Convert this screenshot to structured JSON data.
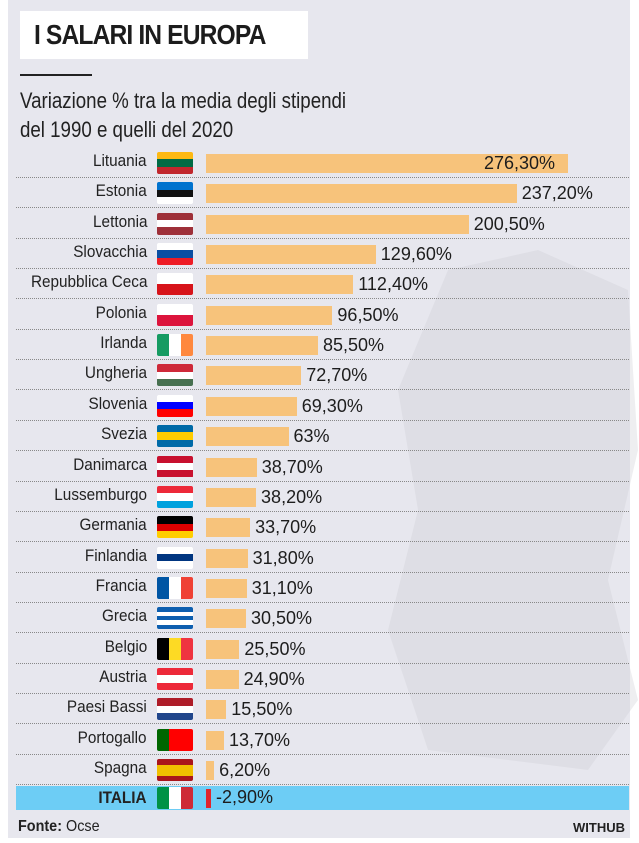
{
  "header": {
    "title": "I SALARI IN EUROPA",
    "subtitle_line1": "Variazione % tra la media degli stipendi",
    "subtitle_line2": "del 1990 e quelli del  2020"
  },
  "footer": {
    "source_label": "Fonte:",
    "source_value": "Ocse",
    "brand": "WITHUB"
  },
  "colors": {
    "bar": "#f7c37b",
    "highlight_row": "#6dcdf5",
    "negative_bar": "#e0262c",
    "background": "#e7e7ee"
  },
  "chart_data": {
    "type": "bar",
    "orientation": "horizontal",
    "title": "I SALARI IN EUROPA",
    "subtitle": "Variazione % tra la media degli stipendi del 1990 e quelli del  2020",
    "categories": [
      "Lituania",
      "Estonia",
      "Lettonia",
      "Slovacchia",
      "Repubblica Ceca",
      "Polonia",
      "Irlanda",
      "Ungheria",
      "Slovenia",
      "Svezia",
      "Danimarca",
      "Lussemburgo",
      "Germania",
      "Finlandia",
      "Francia",
      "Grecia",
      "Belgio",
      "Austria",
      "Paesi Bassi",
      "Portogallo",
      "Spagna",
      "ITALIA"
    ],
    "values": [
      276.3,
      237.2,
      200.5,
      129.6,
      112.4,
      96.5,
      85.5,
      72.7,
      69.3,
      63,
      38.7,
      38.2,
      33.7,
      31.8,
      31.1,
      30.5,
      25.5,
      24.9,
      15.5,
      13.7,
      6.2,
      -2.9
    ],
    "labels": [
      "276,30%",
      "237,20%",
      "200,50%",
      "129,60%",
      "112,40%",
      "96,50%",
      "85,50%",
      "72,70%",
      "69,30%",
      "63%",
      "38,70%",
      "38,20%",
      "33,70%",
      "31,80%",
      "31,10%",
      "30,50%",
      "25,50%",
      "24,90%",
      "15,50%",
      "13,70%",
      "6,20%",
      "-2,90%"
    ],
    "flags": [
      {
        "dir": "h",
        "colors": [
          "#fdb913",
          "#006a44",
          "#c1272d"
        ]
      },
      {
        "dir": "h",
        "colors": [
          "#0072ce",
          "#111111",
          "#ffffff"
        ]
      },
      {
        "dir": "h",
        "colors": [
          "#9e3039",
          "#ffffff",
          "#9e3039"
        ]
      },
      {
        "dir": "h",
        "colors": [
          "#ffffff",
          "#0b4ea2",
          "#ee1c25"
        ]
      },
      {
        "dir": "h",
        "colors": [
          "#ffffff",
          "#d7141a"
        ]
      },
      {
        "dir": "h",
        "colors": [
          "#ffffff",
          "#dc143c"
        ]
      },
      {
        "dir": "v",
        "colors": [
          "#169b62",
          "#ffffff",
          "#ff883e"
        ]
      },
      {
        "dir": "h",
        "colors": [
          "#ce2939",
          "#ffffff",
          "#477050"
        ]
      },
      {
        "dir": "h",
        "colors": [
          "#ffffff",
          "#0000ff",
          "#ff0000"
        ]
      },
      {
        "dir": "h",
        "colors": [
          "#006aa7",
          "#fecc00",
          "#006aa7"
        ]
      },
      {
        "dir": "h",
        "colors": [
          "#c8102e",
          "#ffffff",
          "#c8102e"
        ]
      },
      {
        "dir": "h",
        "colors": [
          "#ed2939",
          "#ffffff",
          "#00a1de"
        ]
      },
      {
        "dir": "h",
        "colors": [
          "#000000",
          "#dd0000",
          "#ffce00"
        ]
      },
      {
        "dir": "h",
        "colors": [
          "#ffffff",
          "#003580",
          "#ffffff"
        ]
      },
      {
        "dir": "v",
        "colors": [
          "#0055a4",
          "#ffffff",
          "#ef4135"
        ]
      },
      {
        "dir": "h",
        "colors": [
          "#0d5eaf",
          "#ffffff",
          "#0d5eaf",
          "#ffffff",
          "#0d5eaf"
        ]
      },
      {
        "dir": "v",
        "colors": [
          "#000000",
          "#fdda24",
          "#ef3340"
        ]
      },
      {
        "dir": "h",
        "colors": [
          "#ed2939",
          "#ffffff",
          "#ed2939"
        ]
      },
      {
        "dir": "h",
        "colors": [
          "#ae1c28",
          "#ffffff",
          "#21468b"
        ]
      },
      {
        "dir": "v",
        "colors": [
          "#006600",
          "#ff0000",
          "#ff0000"
        ]
      },
      {
        "dir": "h",
        "colors": [
          "#aa151b",
          "#f1bf00",
          "#f1bf00",
          "#aa151b"
        ]
      },
      {
        "dir": "v",
        "colors": [
          "#009246",
          "#ffffff",
          "#ce2b37"
        ]
      }
    ],
    "highlight": "ITALIA",
    "xlim": [
      0,
      276.3
    ],
    "grid": false
  }
}
